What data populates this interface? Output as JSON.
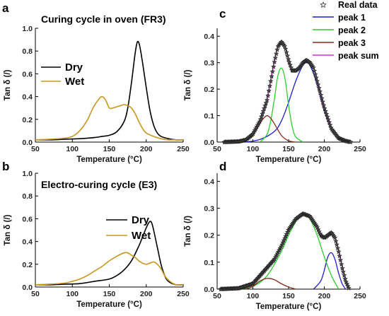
{
  "chart_data": [
    {
      "panel": "a",
      "type": "line",
      "title": "Curing cycle in oven (FR3)",
      "xlabel": "Temperature (°C)",
      "ylabel": "Tan δ (/)",
      "xlim": [
        50,
        250
      ],
      "ylim": [
        0,
        1.0
      ],
      "xticks": [
        "50",
        "100",
        "150",
        "200",
        "250"
      ],
      "yticks": [
        "0.0",
        "0.2",
        "0.4",
        "0.6",
        "0.8",
        "1.0"
      ],
      "legend_position": "center-left",
      "series": [
        {
          "name": "Dry",
          "color": "#000000",
          "x": [
            50,
            70,
            90,
            110,
            130,
            140,
            150,
            160,
            170,
            175,
            180,
            185,
            188,
            191,
            195,
            200,
            205,
            210,
            215,
            220,
            230,
            240,
            250
          ],
          "y": [
            0.02,
            0.02,
            0.025,
            0.03,
            0.04,
            0.05,
            0.06,
            0.09,
            0.18,
            0.3,
            0.52,
            0.78,
            0.88,
            0.85,
            0.7,
            0.48,
            0.28,
            0.15,
            0.08,
            0.05,
            0.03,
            0.02,
            0.02
          ]
        },
        {
          "name": "Wet",
          "color": "#c8961e",
          "x": [
            50,
            70,
            90,
            100,
            110,
            120,
            128,
            135,
            140,
            145,
            150,
            155,
            160,
            165,
            170,
            175,
            180,
            185,
            190,
            195,
            200,
            210,
            220,
            230,
            240,
            250
          ],
          "y": [
            0.02,
            0.025,
            0.035,
            0.05,
            0.1,
            0.19,
            0.3,
            0.37,
            0.4,
            0.37,
            0.3,
            0.3,
            0.31,
            0.32,
            0.33,
            0.32,
            0.3,
            0.25,
            0.18,
            0.12,
            0.08,
            0.05,
            0.03,
            0.02,
            0.02,
            0.02
          ]
        }
      ]
    },
    {
      "panel": "b",
      "type": "line",
      "title": "Electro-curing cycle (E3)",
      "xlabel": "Temperature (°C)",
      "ylabel": "Tan δ (/)",
      "xlim": [
        50,
        250
      ],
      "ylim": [
        0,
        1.0
      ],
      "xticks": [
        "50",
        "100",
        "150",
        "200",
        "250"
      ],
      "yticks": [
        "0.0",
        "0.2",
        "0.4",
        "0.6",
        "0.8",
        "1.0"
      ],
      "legend_position": "top-right",
      "series": [
        {
          "name": "Dry",
          "color": "#000000",
          "x": [
            50,
            70,
            90,
            110,
            130,
            150,
            160,
            170,
            180,
            190,
            195,
            200,
            204,
            207,
            210,
            215,
            220,
            225,
            230,
            240,
            250
          ],
          "y": [
            0.02,
            0.02,
            0.025,
            0.03,
            0.05,
            0.07,
            0.1,
            0.15,
            0.23,
            0.36,
            0.44,
            0.52,
            0.57,
            0.57,
            0.5,
            0.35,
            0.2,
            0.1,
            0.05,
            0.02,
            0.02
          ]
        },
        {
          "name": "Wet",
          "color": "#c8961e",
          "x": [
            50,
            70,
            90,
            100,
            110,
            120,
            130,
            140,
            150,
            160,
            170,
            175,
            180,
            185,
            190,
            195,
            200,
            205,
            210,
            215,
            220,
            225,
            230,
            240,
            250
          ],
          "y": [
            0.02,
            0.025,
            0.035,
            0.05,
            0.07,
            0.1,
            0.14,
            0.18,
            0.23,
            0.27,
            0.3,
            0.3,
            0.28,
            0.26,
            0.23,
            0.21,
            0.2,
            0.21,
            0.22,
            0.2,
            0.16,
            0.1,
            0.06,
            0.02,
            0.02
          ]
        }
      ]
    },
    {
      "panel": "c",
      "type": "line",
      "title": "",
      "xlabel": "Temperature (°C)",
      "ylabel": "Tan δ (/)",
      "xlim": [
        50,
        250
      ],
      "ylim": [
        0,
        0.43
      ],
      "xticks": [
        "50",
        "100",
        "150",
        "200",
        "250"
      ],
      "yticks": [
        "0.0",
        "0.1",
        "0.2",
        "0.3",
        "0.4"
      ],
      "legend_position": "top-right",
      "legend_symbol_label": "Real data",
      "series": [
        {
          "name": "peak 1",
          "color": "#1f1fcc",
          "x": [
            90,
            110,
            130,
            140,
            150,
            160,
            170,
            175,
            180,
            190,
            200,
            210,
            220,
            230
          ],
          "y": [
            0.0,
            0.01,
            0.04,
            0.08,
            0.15,
            0.23,
            0.29,
            0.3,
            0.29,
            0.22,
            0.12,
            0.05,
            0.015,
            0.0
          ]
        },
        {
          "name": "peak 2",
          "color": "#2ecc2e",
          "x": [
            110,
            120,
            125,
            130,
            135,
            140,
            145,
            150,
            155,
            160,
            170
          ],
          "y": [
            0.0,
            0.03,
            0.08,
            0.16,
            0.25,
            0.28,
            0.24,
            0.14,
            0.06,
            0.02,
            0.0
          ]
        },
        {
          "name": "peak 3",
          "color": "#8b2a1a",
          "x": [
            80,
            90,
            100,
            110,
            115,
            120,
            125,
            130,
            140,
            150,
            160
          ],
          "y": [
            0.0,
            0.005,
            0.025,
            0.07,
            0.09,
            0.1,
            0.09,
            0.07,
            0.025,
            0.005,
            0.0
          ]
        },
        {
          "name": "peak sum",
          "color": "#cc33cc",
          "x": [
            60,
            80,
            90,
            100,
            110,
            120,
            130,
            135,
            140,
            145,
            150,
            155,
            160,
            165,
            170,
            175,
            180,
            185,
            190,
            200,
            210,
            220,
            230,
            237
          ],
          "y": [
            0.0,
            0.002,
            0.008,
            0.03,
            0.08,
            0.16,
            0.3,
            0.36,
            0.38,
            0.36,
            0.31,
            0.27,
            0.27,
            0.28,
            0.3,
            0.31,
            0.3,
            0.28,
            0.23,
            0.13,
            0.05,
            0.015,
            0.004,
            0.0
          ]
        },
        {
          "name": "Real data",
          "color": "#1a1a1a",
          "marker": "star",
          "x": [
            60,
            80,
            90,
            100,
            110,
            120,
            130,
            135,
            140,
            145,
            150,
            155,
            160,
            165,
            170,
            175,
            180,
            185,
            190,
            200,
            210,
            220,
            230,
            237
          ],
          "y": [
            0.0,
            0.002,
            0.008,
            0.03,
            0.08,
            0.16,
            0.3,
            0.36,
            0.38,
            0.36,
            0.31,
            0.27,
            0.27,
            0.28,
            0.3,
            0.31,
            0.3,
            0.28,
            0.23,
            0.13,
            0.05,
            0.015,
            0.004,
            0.0
          ]
        }
      ]
    },
    {
      "panel": "d",
      "type": "line",
      "title": "",
      "xlabel": "Temperature (°C)",
      "ylabel": "Tan δ (/)",
      "xlim": [
        50,
        250
      ],
      "ylim": [
        0,
        0.43
      ],
      "xticks": [
        "50",
        "100",
        "150",
        "200",
        "250"
      ],
      "yticks": [
        "0.0",
        "0.1",
        "0.2",
        "0.3",
        "0.4"
      ],
      "series": [
        {
          "name": "peak 1",
          "color": "#1f1fcc",
          "x": [
            185,
            195,
            200,
            205,
            210,
            215,
            220,
            225,
            230
          ],
          "y": [
            0.0,
            0.03,
            0.07,
            0.12,
            0.135,
            0.11,
            0.06,
            0.02,
            0.0
          ]
        },
        {
          "name": "peak 2",
          "color": "#2ecc2e",
          "x": [
            80,
            100,
            120,
            140,
            150,
            160,
            170,
            180,
            190,
            200,
            210,
            220
          ],
          "y": [
            0.0,
            0.01,
            0.05,
            0.14,
            0.2,
            0.25,
            0.28,
            0.26,
            0.2,
            0.12,
            0.05,
            0.0
          ]
        },
        {
          "name": "peak 3",
          "color": "#8b2a1a",
          "x": [
            90,
            100,
            110,
            120,
            130,
            140,
            150,
            160
          ],
          "y": [
            0.0,
            0.01,
            0.03,
            0.04,
            0.035,
            0.02,
            0.008,
            0.0
          ]
        },
        {
          "name": "peak sum",
          "color": "#cc33cc",
          "x": [
            55,
            80,
            100,
            110,
            120,
            130,
            140,
            150,
            160,
            170,
            180,
            190,
            195,
            200,
            205,
            210,
            215,
            220,
            225,
            230,
            235
          ],
          "y": [
            0.0,
            0.003,
            0.02,
            0.05,
            0.08,
            0.11,
            0.16,
            0.22,
            0.26,
            0.28,
            0.27,
            0.23,
            0.2,
            0.19,
            0.2,
            0.21,
            0.19,
            0.14,
            0.08,
            0.03,
            0.0
          ]
        },
        {
          "name": "Real data",
          "color": "#1a1a1a",
          "marker": "star",
          "x": [
            55,
            80,
            100,
            110,
            120,
            130,
            140,
            150,
            160,
            170,
            180,
            190,
            195,
            200,
            205,
            210,
            215,
            220,
            225,
            230,
            235
          ],
          "y": [
            0.0,
            0.003,
            0.02,
            0.05,
            0.08,
            0.11,
            0.16,
            0.22,
            0.26,
            0.28,
            0.27,
            0.23,
            0.2,
            0.19,
            0.2,
            0.21,
            0.19,
            0.14,
            0.08,
            0.03,
            0.0
          ]
        }
      ]
    }
  ]
}
